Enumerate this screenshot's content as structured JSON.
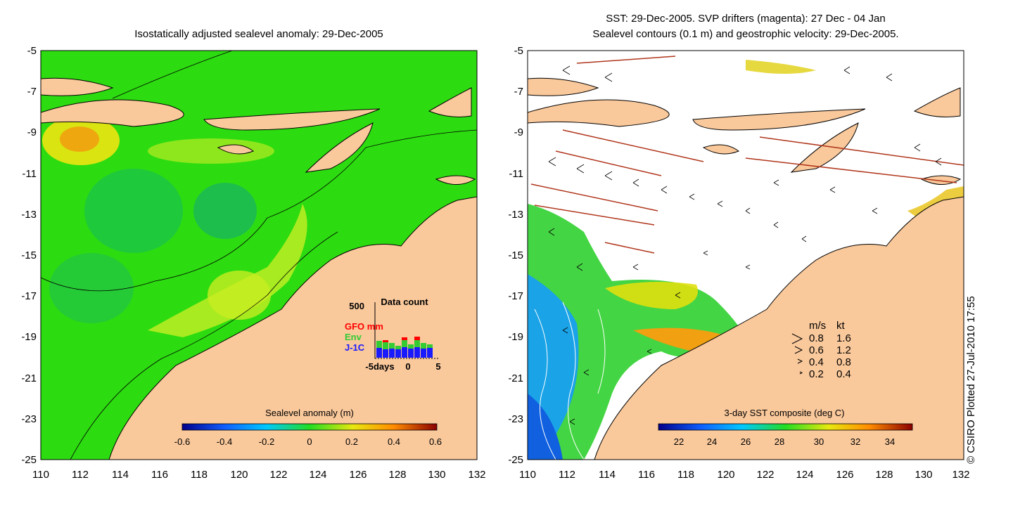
{
  "left_panel": {
    "title": "Isostatically adjusted sealevel anomaly: 29-Dec-2005",
    "y_ticks": [
      "-5",
      "-7",
      "-9",
      "-11",
      "-13",
      "-15",
      "-17",
      "-19",
      "-21",
      "-23",
      "-25"
    ],
    "x_ticks": [
      "110",
      "112",
      "114",
      "116",
      "118",
      "120",
      "122",
      "124",
      "126",
      "128",
      "130",
      "132"
    ],
    "colorbar": {
      "label": "Sealevel anomaly (m)",
      "ticks": [
        "-0.6",
        "-0.4",
        "-0.2",
        "0",
        "0.2",
        "0.4",
        "0.6"
      ]
    },
    "data_count": {
      "title": "Data count",
      "y_max": "500",
      "x_ticks": [
        "-5days",
        "0",
        "5"
      ],
      "legend": [
        {
          "label": "GFO mm",
          "color": "#ff0000"
        },
        {
          "label": "Env",
          "color": "#33cc33"
        },
        {
          "label": "J-1C",
          "color": "#1a1aff"
        }
      ]
    }
  },
  "right_panel": {
    "title_line1": "SST: 29-Dec-2005. SVP drifters (magenta): 27 Dec - 04 Jan",
    "title_line2": "Sealevel contours (0.1 m) and geostrophic velocity: 29-Dec-2005.",
    "y_ticks": [
      "-5",
      "-7",
      "-9",
      "-11",
      "-13",
      "-15",
      "-17",
      "-19",
      "-21",
      "-23",
      "-25"
    ],
    "x_ticks": [
      "110",
      "112",
      "114",
      "116",
      "118",
      "120",
      "122",
      "124",
      "126",
      "128",
      "130",
      "132"
    ],
    "colorbar": {
      "label": "3-day SST composite (deg C)",
      "ticks": [
        "22",
        "24",
        "26",
        "28",
        "30",
        "32",
        "34"
      ]
    },
    "velocity_legend": {
      "headers": [
        "m/s",
        "kt"
      ],
      "rows": [
        {
          "ms": "0.8",
          "kt": "1.6"
        },
        {
          "ms": "0.6",
          "kt": "1.2"
        },
        {
          "ms": "0.4",
          "kt": "0.8"
        },
        {
          "ms": "0.2",
          "kt": "0.4"
        }
      ]
    }
  },
  "credit": "© CSIRO Plotted 27-Jul-2010 17:55",
  "colors": {
    "land": "#f9c89b",
    "ocean_green": "#33dd11",
    "anomaly_low": "#00008b",
    "anomaly_high": "#8b0000"
  }
}
